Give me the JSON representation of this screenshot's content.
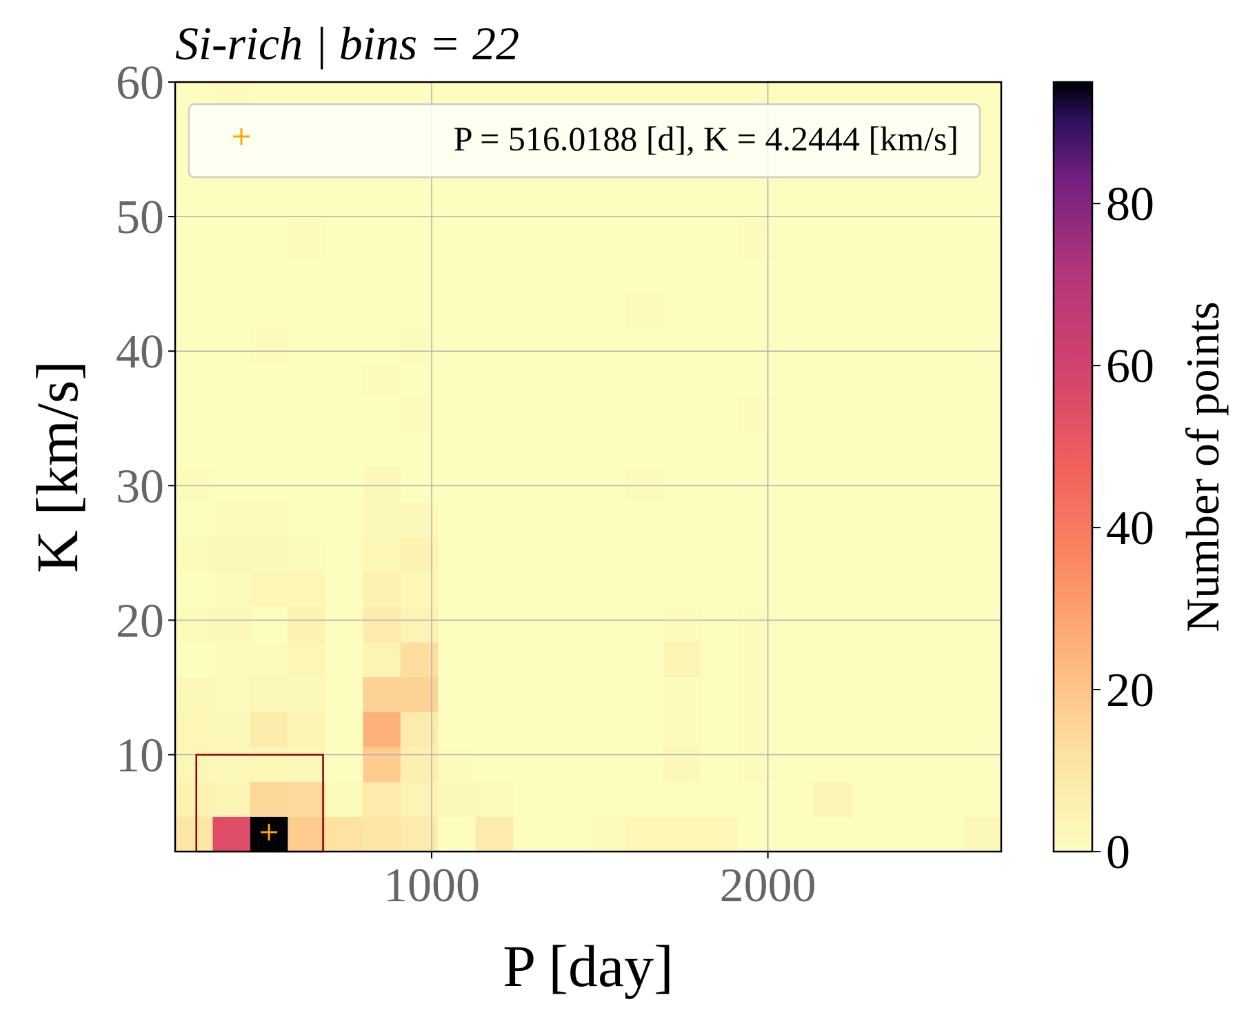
{
  "chart_data": {
    "type": "heatmap",
    "title": "Si-rich | bins = 22",
    "xlabel": "P [day]",
    "ylabel": "K [km/s]",
    "xlim": [
      237,
      2694
    ],
    "ylim": [
      2.8,
      60
    ],
    "x_ticks": [
      1000,
      2000
    ],
    "x_tick_labels": [
      "1000",
      "2000"
    ],
    "y_ticks": [
      10,
      20,
      30,
      40,
      50,
      60
    ],
    "y_tick_labels": [
      "10",
      "20",
      "30",
      "40",
      "50",
      "60"
    ],
    "grid": true,
    "colormap": "magma_r",
    "colorbar": {
      "label": "Number of points",
      "min": 0,
      "max": 95,
      "ticks": [
        0,
        20,
        40,
        60,
        80
      ],
      "tick_labels": [
        "0",
        "20",
        "40",
        "60",
        "80"
      ]
    },
    "bins": 22,
    "x_edges": [
      237.0,
      348.7,
      460.4,
      572.1,
      683.8,
      795.5,
      907.2,
      1018.9,
      1130.6,
      1242.3,
      1354.0,
      1465.7,
      1577.4,
      1689.1,
      1800.8,
      1912.5,
      2024.2,
      2135.9,
      2247.6,
      2359.3,
      2471.0,
      2582.7,
      2694.4
    ],
    "y_edges": [
      2.8,
      5.4,
      8.0,
      10.6,
      13.2,
      15.8,
      18.4,
      21.0,
      23.6,
      26.2,
      28.8,
      31.4,
      34.0,
      36.6,
      39.2,
      41.8,
      44.4,
      47.0,
      49.6,
      52.2,
      54.8,
      57.4,
      60.0
    ],
    "counts": [
      [
        10,
        55,
        95,
        18,
        12,
        10,
        8,
        0,
        8,
        0,
        0,
        1,
        3,
        3,
        3,
        0,
        0,
        0,
        0,
        0,
        0,
        2
      ],
      [
        5,
        4,
        15,
        14,
        1,
        8,
        4,
        2,
        1,
        0,
        0,
        0,
        0,
        0,
        0,
        0,
        0,
        4,
        0,
        0,
        0,
        0
      ],
      [
        3,
        2,
        3,
        2,
        0,
        18,
        6,
        1,
        0,
        0,
        0,
        0,
        0,
        2,
        0,
        1,
        0,
        0,
        0,
        0,
        0,
        0
      ],
      [
        3,
        2,
        7,
        4,
        0,
        25,
        8,
        0,
        0,
        0,
        0,
        0,
        0,
        1,
        0,
        1,
        0,
        0,
        0,
        0,
        0,
        0
      ],
      [
        2,
        1,
        2,
        2,
        0,
        16,
        16,
        0,
        0,
        0,
        0,
        0,
        0,
        1,
        0,
        1,
        0,
        0,
        0,
        0,
        0,
        0
      ],
      [
        0,
        1,
        1,
        3,
        0,
        4,
        13,
        0,
        0,
        0,
        0,
        0,
        0,
        4,
        0,
        1,
        0,
        0,
        0,
        0,
        0,
        0
      ],
      [
        1,
        2,
        0,
        5,
        0,
        8,
        4,
        0,
        0,
        0,
        0,
        0,
        0,
        1,
        0,
        1,
        0,
        0,
        0,
        0,
        0,
        0
      ],
      [
        0,
        1,
        3,
        3,
        0,
        5,
        3,
        0,
        0,
        0,
        0,
        0,
        0,
        0,
        0,
        0,
        0,
        0,
        0,
        0,
        0,
        0
      ],
      [
        1,
        2,
        2,
        1,
        0,
        3,
        5,
        0,
        0,
        0,
        0,
        0,
        0,
        0,
        0,
        0,
        0,
        0,
        0,
        0,
        0,
        0
      ],
      [
        0,
        1,
        1,
        0,
        0,
        2,
        2,
        0,
        0,
        0,
        0,
        0,
        0,
        0,
        0,
        0,
        0,
        0,
        0,
        0,
        0,
        0
      ],
      [
        1,
        0,
        0,
        0,
        0,
        2,
        0,
        0,
        0,
        0,
        0,
        0,
        1,
        0,
        0,
        0,
        0,
        0,
        0,
        0,
        0,
        0
      ],
      [
        0,
        0,
        0,
        0,
        0,
        0,
        0,
        0,
        0,
        0,
        0,
        0,
        0,
        0,
        0,
        0,
        0,
        0,
        0,
        0,
        0,
        0
      ],
      [
        0,
        0,
        0,
        0,
        0,
        0,
        1,
        0,
        0,
        0,
        0,
        0,
        0,
        0,
        0,
        1,
        0,
        0,
        0,
        0,
        0,
        0
      ],
      [
        0,
        0,
        0,
        0,
        0,
        1,
        0,
        0,
        0,
        0,
        0,
        0,
        0,
        0,
        0,
        0,
        0,
        0,
        0,
        0,
        0,
        0
      ],
      [
        0,
        0,
        1,
        0,
        0,
        0,
        1,
        0,
        0,
        0,
        0,
        0,
        0,
        0,
        0,
        0,
        0,
        0,
        0,
        0,
        0,
        0
      ],
      [
        0,
        0,
        0,
        0,
        0,
        0,
        0,
        0,
        0,
        0,
        0,
        0,
        1,
        0,
        0,
        0,
        0,
        0,
        0,
        0,
        0,
        0
      ],
      [
        0,
        0,
        0,
        0,
        0,
        0,
        0,
        0,
        0,
        0,
        0,
        0,
        0,
        0,
        0,
        0,
        0,
        0,
        0,
        0,
        0,
        0
      ],
      [
        0,
        0,
        0,
        1,
        0,
        0,
        0,
        0,
        0,
        0,
        0,
        0,
        0,
        0,
        0,
        1,
        0,
        0,
        0,
        0,
        0,
        0
      ],
      [
        0,
        0,
        0,
        0,
        0,
        0,
        0,
        0,
        0,
        0,
        0,
        0,
        0,
        0,
        0,
        0,
        0,
        0,
        0,
        0,
        0,
        0
      ],
      [
        0,
        0,
        0,
        0,
        0,
        0,
        0,
        0,
        0,
        0,
        0,
        0,
        0,
        0,
        0,
        0,
        0,
        0,
        0,
        0,
        0,
        0
      ],
      [
        0,
        0,
        0,
        0,
        0,
        0,
        0,
        0,
        0,
        0,
        0,
        0,
        0,
        0,
        0,
        0,
        0,
        0,
        0,
        0,
        0,
        0
      ],
      [
        0,
        1,
        0,
        0,
        0,
        0,
        0,
        0,
        0,
        0,
        0,
        0,
        0,
        0,
        0,
        0,
        0,
        0,
        0,
        0,
        0,
        0
      ]
    ],
    "marker": {
      "x": 516.0188,
      "y": 4.2444,
      "symbol": "+",
      "color": "#ffa500",
      "label": "P = 516.0188 [d], K = 4.2444 [km/s]"
    },
    "rectangle": {
      "x0": 300,
      "x1": 677,
      "y0": 2.8,
      "y1": 10,
      "color": "#8b0000"
    },
    "legend": {
      "position": "top",
      "entries": [
        "P = 516.0188 [d], K = 4.2444 [km/s]"
      ]
    }
  }
}
